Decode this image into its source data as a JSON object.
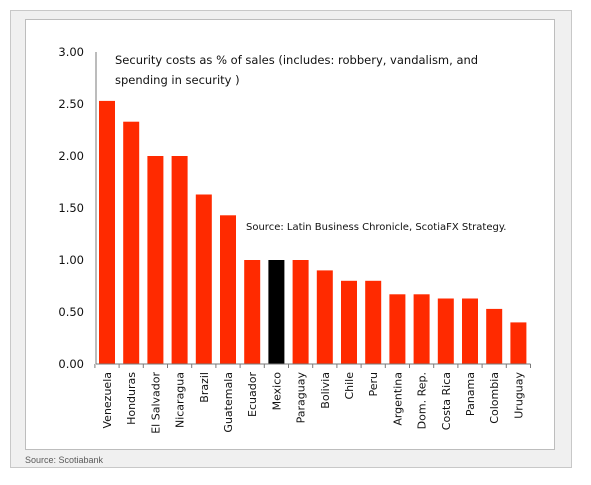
{
  "footer": {
    "source": "Source: Scotiabank"
  },
  "chart_data": {
    "type": "bar",
    "title_lines": [
      "Security costs as % of sales (includes: robbery, vandalism, and",
      "spending in security )"
    ],
    "annotation": "Source: Latin Business Chronicle, ScotiaFX Strategy.",
    "categories": [
      "Venezuela",
      "Honduras",
      "El Salvador",
      "Nicaragua",
      "Brazil",
      "Guatemala",
      "Ecuador",
      "Mexico",
      "Paraguay",
      "Bolivia",
      "Chile",
      "Peru",
      "Argentina",
      "Dom. Rep.",
      "Costa Rica",
      "Panama",
      "Colombia",
      "Uruguay"
    ],
    "values": [
      2.53,
      2.33,
      2.0,
      2.0,
      1.63,
      1.43,
      1.0,
      1.0,
      1.0,
      0.9,
      0.8,
      0.8,
      0.67,
      0.67,
      0.63,
      0.63,
      0.53,
      0.4
    ],
    "highlight_category": "Mexico",
    "bar_color": "#ff2a00",
    "highlight_color": "#000000",
    "ylim": [
      0,
      3.0
    ],
    "yticks": [
      "0.00",
      "0.50",
      "1.00",
      "1.50",
      "2.00",
      "2.50",
      "3.00"
    ],
    "grid": false,
    "legend": "none"
  }
}
